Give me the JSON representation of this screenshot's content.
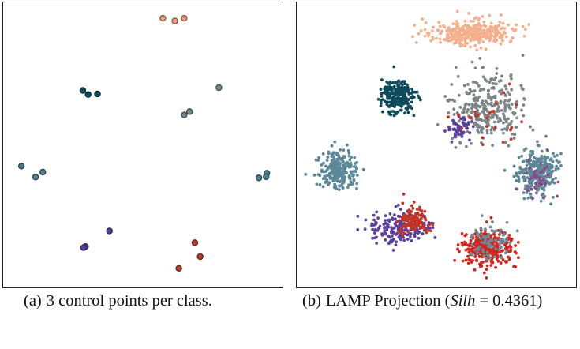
{
  "chart_data": [
    {
      "type": "scatter",
      "caption": {
        "tag": "(a)",
        "text": "3 control points per class."
      },
      "title": "",
      "xlabel": "",
      "ylabel": "",
      "xlim": [
        0,
        100
      ],
      "ylim": [
        0,
        100
      ],
      "grid": false,
      "legend": "none",
      "series": [
        {
          "color": "#e8a07a",
          "points": [
            [
              57.5,
              96.5
            ],
            [
              62,
              95.5
            ],
            [
              65.5,
              96.5
            ]
          ]
        },
        {
          "color": "#0e4a5c",
          "points": [
            [
              27.5,
              70
            ],
            [
              29.5,
              68.5
            ],
            [
              33,
              68.7
            ]
          ]
        },
        {
          "color": "#708a90",
          "points": [
            [
              78.5,
              71
            ],
            [
              67.5,
              62.2
            ],
            [
              65.5,
              61
            ]
          ]
        },
        {
          "color": "#4f7f90",
          "points": [
            [
              4.5,
              42.2
            ],
            [
              12.5,
              40
            ],
            [
              9.8,
              38.2
            ],
            [
              96.5,
              39.6
            ],
            [
              96.2,
              38.3
            ],
            [
              93.5,
              37.9
            ]
          ]
        },
        {
          "color": "#5b3f9e",
          "points": [
            [
              37.5,
              18.4
            ],
            [
              28.5,
              12.7
            ],
            [
              27.8,
              12.3
            ]
          ]
        },
        {
          "color": "#b8402a",
          "points": [
            [
              69.5,
              14.1
            ],
            [
              71.5,
              9
            ],
            [
              63.5,
              4.7
            ]
          ]
        }
      ]
    },
    {
      "type": "scatter",
      "caption": {
        "tag": "(b)",
        "prefix": "LAMP Projection (",
        "silh_label": "Silh",
        "silh_rest": " = 0.4361)"
      },
      "title": "",
      "xlabel": "",
      "ylabel": "",
      "xlim": [
        0,
        100
      ],
      "ylim": [
        0,
        100
      ],
      "grid": false,
      "legend": "none",
      "clusters": [
        {
          "color": "#f4b08c",
          "cx": 63,
          "cy": 91,
          "sx": 7.5,
          "sy": 2.2,
          "n": 360,
          "seed": 11
        },
        {
          "color": "#0e4a5c",
          "cx": 35.5,
          "cy": 68,
          "sx": 3.2,
          "sy": 2.8,
          "n": 240,
          "seed": 12
        },
        {
          "color": "#7d8587",
          "cx": 69,
          "cy": 64,
          "sx": 7,
          "sy": 6.5,
          "n": 300,
          "seed": 13
        },
        {
          "color": "#5b3f9e",
          "cx": 59,
          "cy": 56,
          "sx": 2.5,
          "sy": 2,
          "n": 60,
          "seed": 14
        },
        {
          "color": "#5d8898",
          "cx": 13,
          "cy": 41,
          "sx": 3.3,
          "sy": 3.3,
          "n": 260,
          "seed": 15
        },
        {
          "color": "#5d8898",
          "cx": 88,
          "cy": 40,
          "sx": 3.8,
          "sy": 4.5,
          "n": 280,
          "seed": 16
        },
        {
          "color": "#5b3f9e",
          "cx": 36,
          "cy": 20,
          "sx": 5.5,
          "sy": 2.8,
          "n": 200,
          "seed": 17
        },
        {
          "color": "#c23424",
          "cx": 41,
          "cy": 22,
          "sx": 3,
          "sy": 2.6,
          "n": 120,
          "seed": 18
        },
        {
          "color": "#d0261e",
          "cx": 69,
          "cy": 12,
          "sx": 4.8,
          "sy": 3.2,
          "n": 340,
          "seed": 19
        },
        {
          "color": "#6b8a9a",
          "cx": 70,
          "cy": 15,
          "sx": 4,
          "sy": 3.5,
          "n": 80,
          "seed": 20
        },
        {
          "color": "#c23424",
          "cx": 70,
          "cy": 58,
          "sx": 6,
          "sy": 5,
          "n": 25,
          "seed": 21
        },
        {
          "color": "#8a4a8a",
          "cx": 88,
          "cy": 38,
          "sx": 3,
          "sy": 4,
          "n": 40,
          "seed": 22
        }
      ]
    }
  ]
}
